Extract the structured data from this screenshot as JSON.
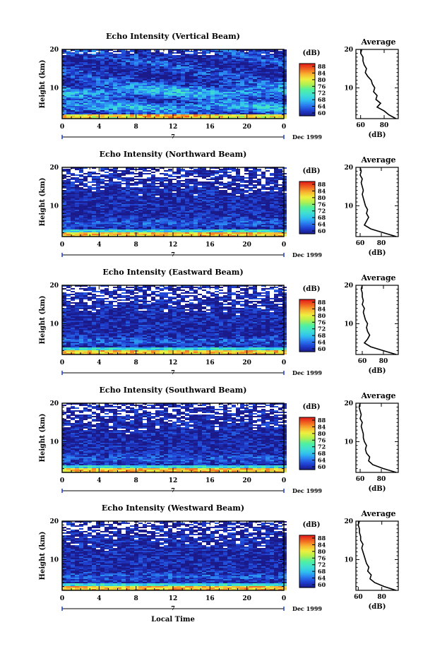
{
  "chart_data": {
    "type": "heatmap",
    "shared": {
      "x_ticks": [
        "0",
        "4",
        "8",
        "12",
        "16",
        "20",
        "0"
      ],
      "x_range": [
        0,
        24
      ],
      "y_ticks": [
        "10",
        "20"
      ],
      "y_range": [
        2,
        20
      ],
      "ylabel": "Height (km)",
      "date_marker": "7",
      "date_label": "Dec 1999",
      "xlabel": "Local Time",
      "colorbar_unit": "(dB)",
      "colorbar_ticks": [
        "88",
        "84",
        "80",
        "76",
        "72",
        "68",
        "64",
        "60"
      ],
      "colorbar_range": [
        60,
        90
      ],
      "colorbar_colors": [
        "#1a1a8a",
        "#1f3fd0",
        "#2a7cf0",
        "#30c0f0",
        "#40e0d0",
        "#50f0a0",
        "#b0f050",
        "#f0f040",
        "#f8b030",
        "#f06020",
        "#e01818"
      ],
      "avg_title": "Average",
      "avg_xlabel": "(dB)",
      "avg_y_ticks": [
        "10",
        "20"
      ]
    },
    "panels": [
      {
        "title": "Echo Intensity (Vertical Beam)",
        "avg_x_ticks": [
          "60",
          "80"
        ],
        "avg_x_range": [
          56,
          92
        ],
        "avg_profile": [
          [
            90,
            2.0
          ],
          [
            84,
            3.0
          ],
          [
            80,
            4.0
          ],
          [
            74,
            5.0
          ],
          [
            77,
            6.0
          ],
          [
            73,
            7.0
          ],
          [
            74,
            8.0
          ],
          [
            71,
            9.0
          ],
          [
            72,
            10.0
          ],
          [
            70,
            11.0
          ],
          [
            69,
            12.0
          ],
          [
            66,
            13.0
          ],
          [
            64,
            14.0
          ],
          [
            65,
            15.0
          ],
          [
            63,
            16.0
          ],
          [
            62,
            17.0
          ],
          [
            62,
            18.0
          ],
          [
            60,
            19.0
          ],
          [
            61,
            20.0
          ]
        ]
      },
      {
        "title": "Echo Intensity (Northward Beam)",
        "avg_x_ticks": [
          "60",
          "80"
        ],
        "avg_x_range": [
          56,
          96
        ],
        "avg_profile": [
          [
            94,
            2.0
          ],
          [
            82,
            3.0
          ],
          [
            70,
            4.0
          ],
          [
            64,
            5.0
          ],
          [
            66,
            6.0
          ],
          [
            68,
            7.0
          ],
          [
            66,
            8.0
          ],
          [
            67,
            9.0
          ],
          [
            65,
            10.0
          ],
          [
            64,
            11.0
          ],
          [
            63,
            12.0
          ],
          [
            62,
            13.0
          ],
          [
            63,
            14.0
          ],
          [
            62,
            15.0
          ],
          [
            61,
            16.0
          ],
          [
            62,
            17.0
          ],
          [
            60,
            18.0
          ],
          [
            61,
            19.0
          ],
          [
            60,
            20.0
          ]
        ]
      },
      {
        "title": "Echo Intensity (Eastward Beam)",
        "avg_x_ticks": [
          "60",
          "80"
        ],
        "avg_x_range": [
          54,
          94
        ],
        "avg_profile": [
          [
            92,
            2.0
          ],
          [
            80,
            3.0
          ],
          [
            68,
            4.0
          ],
          [
            62,
            5.0
          ],
          [
            65,
            6.0
          ],
          [
            67,
            7.0
          ],
          [
            65,
            8.0
          ],
          [
            64,
            9.0
          ],
          [
            65,
            10.0
          ],
          [
            63,
            11.0
          ],
          [
            62,
            12.0
          ],
          [
            61,
            13.0
          ],
          [
            62,
            14.0
          ],
          [
            60,
            15.0
          ],
          [
            61,
            16.0
          ],
          [
            60,
            17.0
          ],
          [
            60,
            18.0
          ],
          [
            59,
            19.0
          ],
          [
            60,
            20.0
          ]
        ]
      },
      {
        "title": "Echo Intensity (Southward Beam)",
        "avg_x_ticks": [
          "60",
          "80"
        ],
        "avg_x_range": [
          56,
          96
        ],
        "avg_profile": [
          [
            94,
            2.0
          ],
          [
            82,
            3.0
          ],
          [
            72,
            4.0
          ],
          [
            68,
            5.0
          ],
          [
            69,
            6.0
          ],
          [
            66,
            7.0
          ],
          [
            65,
            8.0
          ],
          [
            66,
            9.0
          ],
          [
            64,
            10.0
          ],
          [
            63,
            11.0
          ],
          [
            63,
            12.0
          ],
          [
            62,
            13.0
          ],
          [
            61,
            14.0
          ],
          [
            62,
            15.0
          ],
          [
            60,
            16.0
          ],
          [
            61,
            17.0
          ],
          [
            60,
            18.0
          ],
          [
            59,
            19.0
          ],
          [
            60,
            20.0
          ]
        ]
      },
      {
        "title": "Echo Intensity (Westward Beam)",
        "avg_x_ticks": [
          "60",
          "80"
        ],
        "avg_x_range": [
          58,
          94
        ],
        "avg_profile": [
          [
            92,
            2.0
          ],
          [
            82,
            3.0
          ],
          [
            74,
            4.0
          ],
          [
            70,
            5.0
          ],
          [
            71,
            6.0
          ],
          [
            68,
            7.0
          ],
          [
            69,
            8.0
          ],
          [
            67,
            9.0
          ],
          [
            66,
            10.0
          ],
          [
            65,
            11.0
          ],
          [
            64,
            12.0
          ],
          [
            63,
            13.0
          ],
          [
            64,
            14.0
          ],
          [
            62,
            15.0
          ],
          [
            62,
            16.0
          ],
          [
            61,
            17.0
          ],
          [
            61,
            18.0
          ],
          [
            60,
            19.0
          ],
          [
            61,
            20.0
          ]
        ]
      }
    ]
  }
}
